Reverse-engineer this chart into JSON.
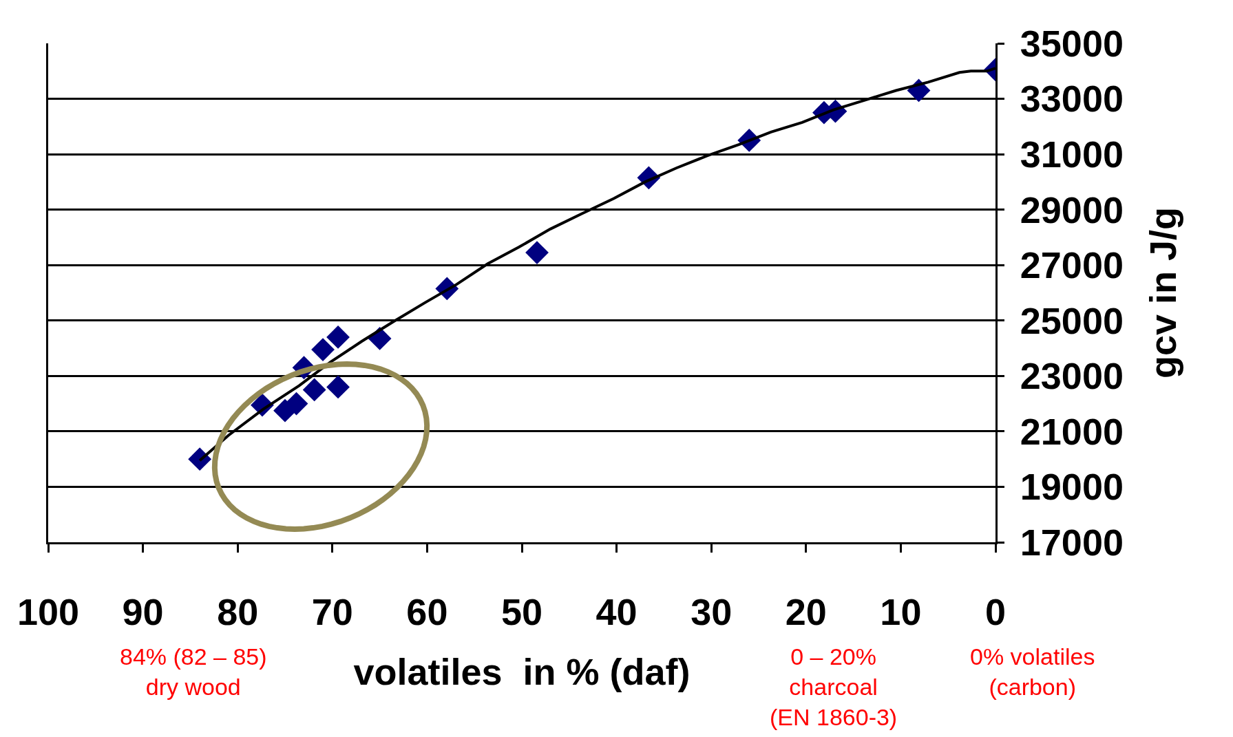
{
  "chart_data": {
    "type": "scatter",
    "xlabel": "volatiles  in % (daf)",
    "ylabel": "gcv in J/g",
    "series": [
      {
        "color": "#000080",
        "marker": "diamond",
        "x": [
          84.0,
          77.4,
          75.0,
          73.8,
          73.0,
          71.9,
          71.0,
          69.4,
          69.4,
          65.0,
          57.9,
          48.4,
          36.6,
          26.0,
          18.1,
          16.9,
          8.1,
          0
        ],
        "values": [
          20000,
          21950,
          21750,
          22000,
          23300,
          22500,
          23950,
          24400,
          22600,
          24350,
          26150,
          27450,
          30150,
          31500,
          32500,
          32550,
          33300,
          34050
        ]
      },
      {
        "type": "line",
        "color": "#000000",
        "marker": "none",
        "line_style": "solid",
        "x": [
          84,
          81,
          77.3,
          73.5,
          70.2,
          66.9,
          63.6,
          60.2,
          56.9,
          53.6,
          50.3,
          47.0,
          43.7,
          40.3,
          37.0,
          33.7,
          30.4,
          27.1,
          23.7,
          20.4,
          17.1,
          13.8,
          10.5,
          7.1,
          3.8,
          2.6,
          0.9,
          0
        ],
        "values": [
          19950,
          20850,
          21800,
          22650,
          23500,
          24250,
          24950,
          25650,
          26300,
          27050,
          27650,
          28300,
          28850,
          29400,
          30000,
          30500,
          30950,
          31350,
          31800,
          32150,
          32600,
          32950,
          33300,
          33600,
          33950,
          34000,
          34000,
          34100
        ]
      }
    ],
    "xlim": [
      100,
      0
    ],
    "xticks": [
      100,
      90,
      80,
      70,
      60,
      50,
      40,
      30,
      20,
      10,
      0
    ],
    "ylim": [
      17000,
      35000
    ],
    "yticks": [
      17000,
      19000,
      21000,
      23000,
      25000,
      27000,
      29000,
      31000,
      33000,
      35000
    ],
    "grid": "y",
    "annotations": [
      "84% (82 – 85)\ndry wood",
      "0 – 20%\ncharcoal\n(EN 1860-3)",
      "0% volatiles\n(carbon)"
    ]
  }
}
